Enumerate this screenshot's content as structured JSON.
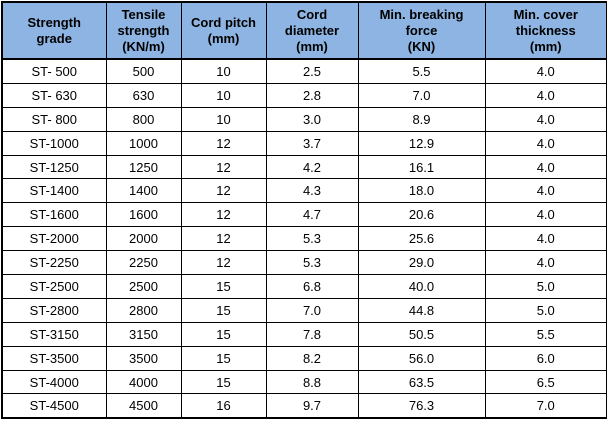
{
  "table": {
    "name": "steel-cord-conveyor-belt-specifications",
    "header_bg_color": "#8DB4E2",
    "border_color": "#000000",
    "text_color": "#000000",
    "columns": [
      {
        "id": "strength-grade",
        "label": "Strength\ngrade"
      },
      {
        "id": "tensile-strength",
        "label": "Tensile\nstrength\n(KN/m)"
      },
      {
        "id": "cord-pitch",
        "label": "Cord pitch\n(mm)"
      },
      {
        "id": "cord-diameter",
        "label": "Cord\ndiameter\n(mm)"
      },
      {
        "id": "min-breaking-force",
        "label": "Min. breaking\nforce\n(KN)"
      },
      {
        "id": "min-cover-thickness",
        "label": "Min. cover\nthickness\n(mm)"
      }
    ],
    "rows": [
      {
        "cells": [
          "ST- 500",
          "500",
          "10",
          "2.5",
          "5.5",
          "4.0"
        ]
      },
      {
        "cells": [
          "ST- 630",
          "630",
          "10",
          "2.8",
          "7.0",
          "4.0"
        ]
      },
      {
        "cells": [
          "ST- 800",
          "800",
          "10",
          "3.0",
          "8.9",
          "4.0"
        ]
      },
      {
        "cells": [
          "ST-1000",
          "1000",
          "12",
          "3.7",
          "12.9",
          "4.0"
        ]
      },
      {
        "cells": [
          "ST-1250",
          "1250",
          "12",
          "4.2",
          "16.1",
          "4.0"
        ]
      },
      {
        "cells": [
          "ST-1400",
          "1400",
          "12",
          "4.3",
          "18.0",
          "4.0"
        ]
      },
      {
        "cells": [
          "ST-1600",
          "1600",
          "12",
          "4.7",
          "20.6",
          "4.0"
        ]
      },
      {
        "cells": [
          "ST-2000",
          "2000",
          "12",
          "5.3",
          "25.6",
          "4.0"
        ]
      },
      {
        "cells": [
          "ST-2250",
          "2250",
          "12",
          "5.3",
          "29.0",
          "4.0"
        ]
      },
      {
        "cells": [
          "ST-2500",
          "2500",
          "15",
          "6.8",
          "40.0",
          "5.0"
        ]
      },
      {
        "cells": [
          "ST-2800",
          "2800",
          "15",
          "7.0",
          "44.8",
          "5.0"
        ]
      },
      {
        "cells": [
          "ST-3150",
          "3150",
          "15",
          "7.8",
          "50.5",
          "5.5"
        ]
      },
      {
        "cells": [
          "ST-3500",
          "3500",
          "15",
          "8.2",
          "56.0",
          "6.0"
        ]
      },
      {
        "cells": [
          "ST-4000",
          "4000",
          "15",
          "8.8",
          "63.5",
          "6.5"
        ]
      },
      {
        "cells": [
          "ST-4500",
          "4500",
          "16",
          "9.7",
          "76.3",
          "7.0"
        ]
      }
    ]
  }
}
